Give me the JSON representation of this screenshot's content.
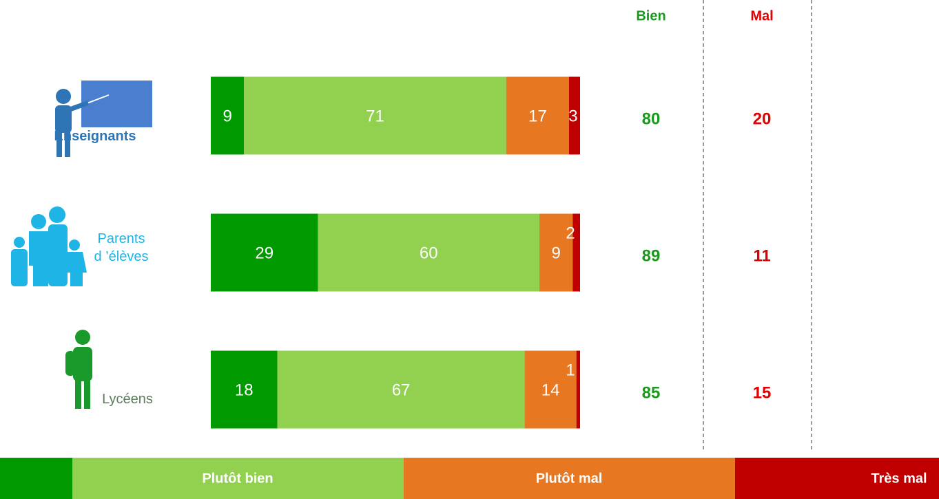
{
  "chart_data": {
    "type": "stacked_bar",
    "categories": [
      "Enseignants",
      "Parents\nd ’élèves",
      "Lycéens"
    ],
    "category_colors": [
      "#2e75b6",
      "#1fb4e6",
      "#5b7b5b"
    ],
    "series": [
      {
        "name": null,
        "color": "#009900",
        "values": [
          9,
          29,
          18
        ]
      },
      {
        "name": "Plutôt bien",
        "color": "#92d050",
        "values": [
          71,
          60,
          67
        ]
      },
      {
        "name": "Plutôt mal",
        "color": "#e87722",
        "values": [
          17,
          9,
          14
        ]
      },
      {
        "name": "Très mal",
        "color": "#c00000",
        "values": [
          3,
          2,
          1
        ]
      }
    ],
    "xlim": [
      0,
      100
    ],
    "totals": [
      {
        "name": "Bien",
        "color": "#1a9a1a",
        "values": [
          80,
          89,
          85
        ]
      },
      {
        "name": "Mal",
        "color": "#e00000",
        "values": [
          20,
          11,
          15
        ]
      }
    ]
  }
}
